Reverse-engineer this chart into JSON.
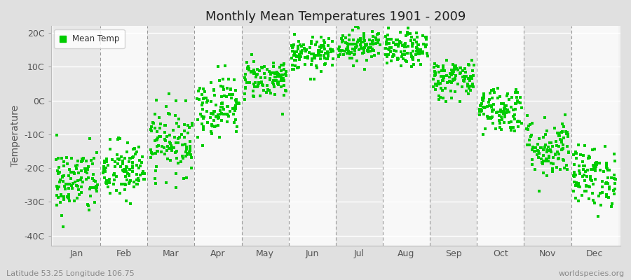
{
  "title": "Monthly Mean Temperatures 1901 - 2009",
  "ylabel": "Temperature",
  "xlabel_bottom_left": "Latitude 53.25 Longitude 106.75",
  "xlabel_bottom_right": "worldspecies.org",
  "legend_label": "Mean Temp",
  "dot_color": "#00cc00",
  "fig_bg_color": "#e0e0e0",
  "plot_bg_color": "#f2f2f2",
  "band_color_even": "#e8e8e8",
  "band_color_odd": "#f8f8f8",
  "yticks": [
    -40,
    -30,
    -20,
    -10,
    0,
    10,
    20
  ],
  "ytick_labels": [
    "-40C",
    "-30C",
    "-20C",
    "-10C",
    "0C",
    "10C",
    "20C"
  ],
  "ylim": [
    -43,
    22
  ],
  "months": [
    "Jan",
    "Feb",
    "Mar",
    "Apr",
    "May",
    "Jun",
    "Jul",
    "Aug",
    "Sep",
    "Oct",
    "Nov",
    "Dec"
  ],
  "mean_temps": [
    -24.0,
    -21.0,
    -12.0,
    -1.5,
    6.5,
    13.5,
    16.5,
    15.0,
    6.5,
    -2.5,
    -14.0,
    -22.5
  ],
  "std_temps": [
    5.0,
    4.5,
    5.0,
    4.5,
    3.0,
    2.5,
    2.5,
    2.5,
    3.0,
    3.5,
    4.5,
    4.5
  ],
  "n_years": 109,
  "marker_size": 3.5,
  "title_fontsize": 13,
  "tick_fontsize": 9,
  "ylabel_fontsize": 10
}
